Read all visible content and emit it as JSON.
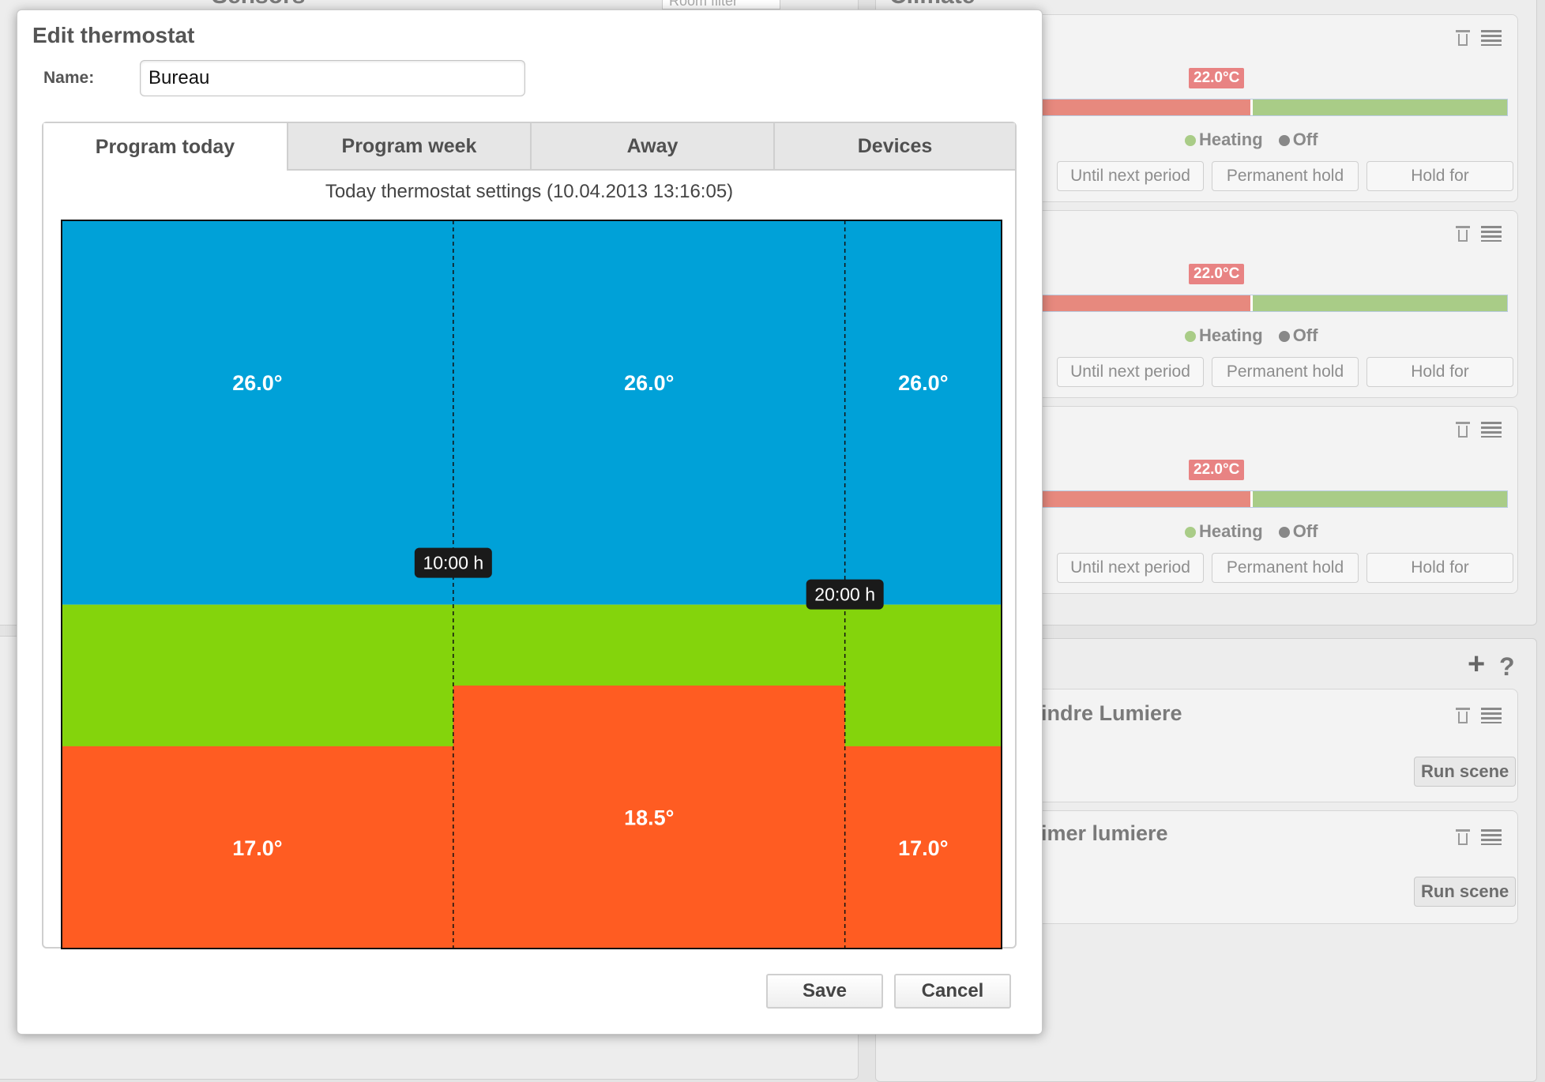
{
  "background": {
    "sensors_heading": "Sensors",
    "room_filter_placeholder": "Room filter",
    "climate_heading": "Climate",
    "thermostats": [
      {
        "temperature": "22.0°C",
        "heating_label": "Heating",
        "off_label": "Off",
        "until_next_label": "Until next period",
        "permanent_label": "Permanent hold",
        "hold_for_label": "Hold for"
      },
      {
        "temperature": "22.0°C",
        "heating_label": "Heating",
        "off_label": "Off",
        "until_next_label": "Until next period",
        "permanent_label": "Permanent hold",
        "hold_for_label": "Hold for"
      },
      {
        "temperature": "22.0°C",
        "heating_label": "Heating",
        "off_label": "Off",
        "until_next_label": "Until next period",
        "permanent_label": "Permanent hold",
        "hold_for_label": "Hold for"
      }
    ],
    "scenes": [
      {
        "name": "indre Lumiere",
        "run_label": "Run scene"
      },
      {
        "name": "imer lumiere",
        "run_label": "Run scene"
      }
    ],
    "add_glyph": "+",
    "help_glyph": "?",
    "colors": {
      "heating_dot": "#a9cc87",
      "off_dot": "#888888",
      "bar_red": "#e7897e",
      "bar_green": "#a9cc87"
    }
  },
  "dialog": {
    "title": "Edit thermostat",
    "name_label": "Name:",
    "name_value": "Bureau",
    "tabs": [
      "Program today",
      "Program week",
      "Away",
      "Devices"
    ],
    "active_tab": "Program today",
    "today_heading": "Today thermostat settings (10.04.2013 13:16:05)",
    "save_label": "Save",
    "cancel_label": "Cancel"
  },
  "chart_data": {
    "type": "area",
    "title": "Today thermostat settings (10.04.2013 13:16:05)",
    "x_unit": "h",
    "xlim": [
      0,
      24
    ],
    "ylim": [
      12,
      30
    ],
    "boundaries": [
      {
        "time": 10,
        "label": "10:00 h"
      },
      {
        "time": 20,
        "label": "20:00 h"
      }
    ],
    "periods": [
      {
        "start": 0,
        "end": 10,
        "comfort": 26.0,
        "comfort_label": "26.0°",
        "eco": 17.0,
        "eco_label": "17.0°"
      },
      {
        "start": 10,
        "end": 20,
        "comfort": 26.0,
        "comfort_label": "26.0°",
        "eco": 18.5,
        "eco_label": "18.5°"
      },
      {
        "start": 20,
        "end": 24,
        "comfort": 26.0,
        "comfort_label": "26.0°",
        "eco": 17.0,
        "eco_label": "17.0°"
      }
    ],
    "green_band_top": 20.5,
    "colors": {
      "comfort": "#00a1d8",
      "band": "#84d40c",
      "eco": "#ff5c22"
    }
  }
}
